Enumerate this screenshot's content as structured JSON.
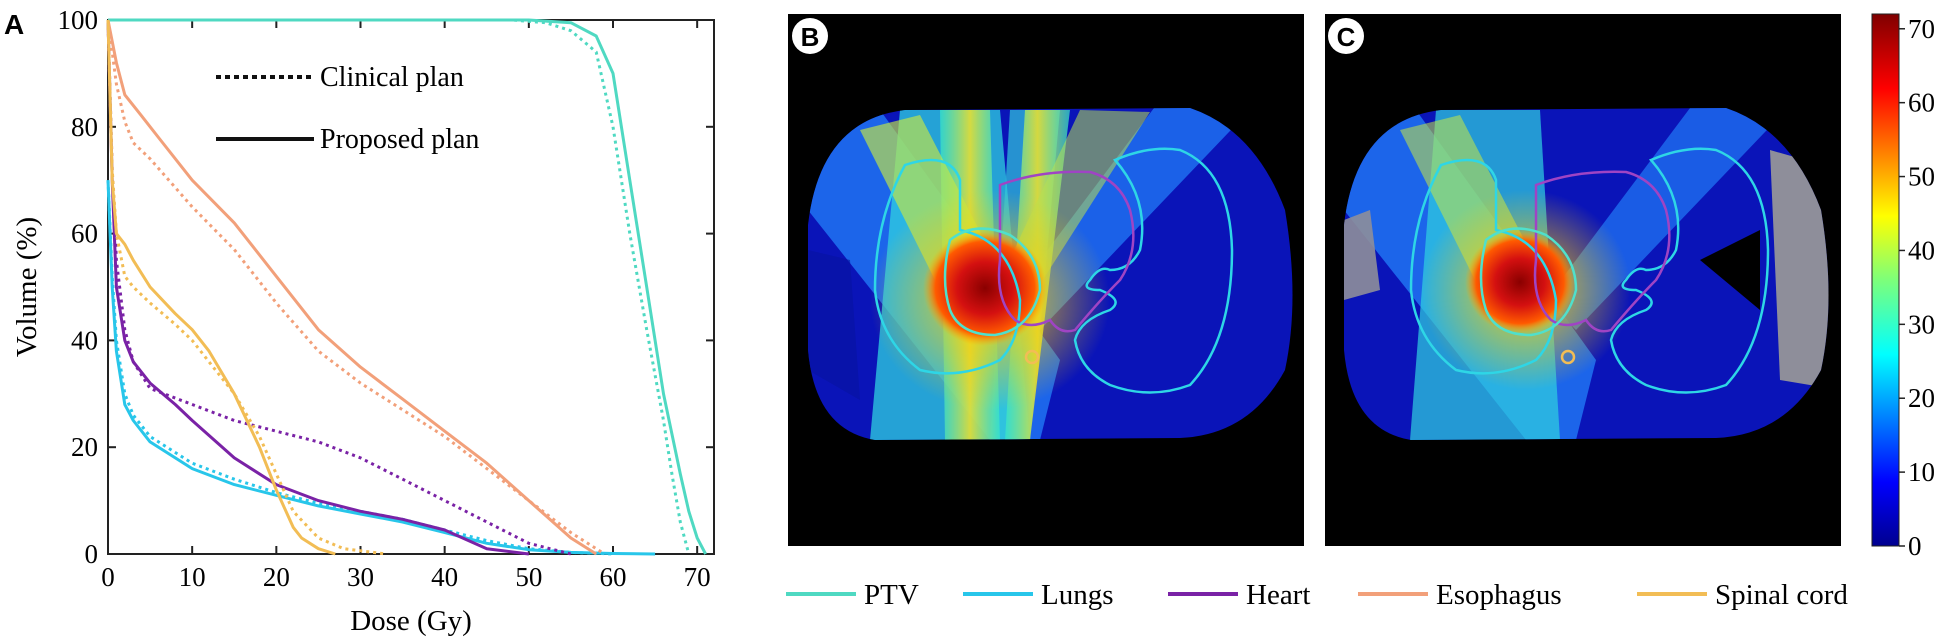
{
  "panels": {
    "a": {
      "letter": "A"
    },
    "b": {
      "letter": "B"
    },
    "c": {
      "letter": "C"
    }
  },
  "dvh_legend": {
    "clinical_label": "Clinical plan",
    "proposed_label": "Proposed plan"
  },
  "structure_legend": [
    {
      "name": "PTV",
      "color": "#4fd9c2"
    },
    {
      "name": "Lungs",
      "color": "#28c6ea"
    },
    {
      "name": "Heart",
      "color": "#7a22a6"
    },
    {
      "name": "Esophagus",
      "color": "#f2a07a"
    },
    {
      "name": "Spinal cord",
      "color": "#f2bd55"
    }
  ],
  "colorbar": {
    "min": 0,
    "max": 72,
    "ticks": [
      "0",
      "10",
      "20",
      "30",
      "40",
      "50",
      "60",
      "70"
    ]
  },
  "chart_data": {
    "type": "line",
    "title": "",
    "xlabel": "Dose (Gy)",
    "ylabel": "Volume (%)",
    "xlim": [
      0,
      72
    ],
    "ylim": [
      0,
      100
    ],
    "xticks": [
      0,
      10,
      20,
      30,
      40,
      50,
      60,
      70
    ],
    "yticks": [
      0,
      20,
      40,
      60,
      80,
      100
    ],
    "grid": false,
    "legend_position": "top-center",
    "series": [
      {
        "name": "PTV",
        "plan": "Proposed plan",
        "style": "solid",
        "color": "#4fd9c2",
        "x": [
          0,
          50,
          55,
          58,
          60,
          62,
          64,
          66,
          68,
          69,
          70,
          71
        ],
        "y": [
          100,
          100,
          99.5,
          97,
          90,
          70,
          50,
          30,
          15,
          8,
          3,
          0
        ]
      },
      {
        "name": "PTV",
        "plan": "Clinical plan",
        "style": "dotted",
        "color": "#4fd9c2",
        "x": [
          0,
          48,
          52,
          55,
          58,
          60,
          62,
          64,
          66,
          67,
          68,
          69
        ],
        "y": [
          100,
          100,
          99.5,
          98,
          94,
          80,
          60,
          42,
          25,
          15,
          6,
          0
        ]
      },
      {
        "name": "Lungs",
        "plan": "Proposed plan",
        "style": "solid",
        "color": "#28c6ea",
        "x": [
          0,
          0.5,
          1,
          2,
          3,
          5,
          10,
          15,
          20,
          25,
          30,
          35,
          40,
          45,
          50,
          55,
          60,
          65
        ],
        "y": [
          70,
          50,
          38,
          28,
          25,
          21,
          16,
          13,
          11,
          9,
          7.5,
          6,
          4,
          2,
          0.8,
          0.3,
          0.1,
          0
        ]
      },
      {
        "name": "Lungs",
        "plan": "Clinical plan",
        "style": "dotted",
        "color": "#28c6ea",
        "x": [
          0,
          0.5,
          1,
          2,
          3,
          5,
          10,
          15,
          20,
          25,
          30,
          35,
          40,
          45,
          50,
          55,
          60
        ],
        "y": [
          70,
          52,
          40,
          30,
          26,
          22,
          17,
          14,
          11.5,
          9.5,
          8,
          6.5,
          4.5,
          2.5,
          1,
          0.3,
          0
        ]
      },
      {
        "name": "Heart",
        "plan": "Proposed plan",
        "style": "solid",
        "color": "#7a22a6",
        "x": [
          0,
          0.5,
          1,
          2,
          3,
          5,
          8,
          10,
          15,
          20,
          25,
          30,
          35,
          40,
          45,
          50
        ],
        "y": [
          100,
          70,
          50,
          40,
          36,
          32,
          28,
          25,
          18,
          13,
          10,
          8,
          6.5,
          4.5,
          1,
          0
        ]
      },
      {
        "name": "Heart",
        "plan": "Clinical plan",
        "style": "dotted",
        "color": "#7a22a6",
        "x": [
          0,
          0.5,
          1,
          2,
          3,
          5,
          10,
          15,
          20,
          25,
          30,
          35,
          40,
          45,
          50,
          55
        ],
        "y": [
          100,
          72,
          55,
          42,
          36,
          31,
          28,
          25,
          23,
          21,
          18,
          14,
          10,
          6,
          2,
          0
        ]
      },
      {
        "name": "Esophagus",
        "plan": "Proposed plan",
        "style": "solid",
        "color": "#f2a07a",
        "x": [
          0,
          1,
          2,
          4,
          6,
          10,
          15,
          20,
          25,
          30,
          35,
          40,
          45,
          50,
          55,
          58
        ],
        "y": [
          100,
          92,
          86,
          82,
          78,
          70,
          62,
          52,
          42,
          35,
          29,
          23,
          17,
          10,
          3,
          0
        ]
      },
      {
        "name": "Esophagus",
        "plan": "Clinical plan",
        "style": "dotted",
        "color": "#f2a07a",
        "x": [
          0,
          1,
          2,
          3,
          5,
          10,
          15,
          20,
          25,
          30,
          35,
          40,
          45,
          50,
          55,
          59
        ],
        "y": [
          100,
          88,
          81,
          77,
          74,
          65,
          57,
          47,
          38,
          32,
          27,
          22,
          16,
          10,
          4,
          0
        ]
      },
      {
        "name": "Spinal cord",
        "plan": "Proposed plan",
        "style": "solid",
        "color": "#f2bd55",
        "x": [
          0,
          0.5,
          1,
          2,
          3,
          5,
          8,
          10,
          12,
          15,
          18,
          20,
          22,
          23,
          25,
          27
        ],
        "y": [
          100,
          70,
          60,
          58,
          55,
          50,
          45,
          42,
          38,
          30,
          20,
          12,
          5,
          3,
          1,
          0
        ]
      },
      {
        "name": "Spinal cord",
        "plan": "Clinical plan",
        "style": "dotted",
        "color": "#f2bd55",
        "x": [
          0,
          0.5,
          1,
          2,
          3,
          5,
          8,
          10,
          12,
          15,
          18,
          20,
          22,
          25,
          28,
          33
        ],
        "y": [
          100,
          72,
          60,
          52,
          50,
          47,
          43,
          40,
          36,
          30,
          22,
          15,
          8,
          3,
          1,
          0
        ]
      }
    ]
  }
}
